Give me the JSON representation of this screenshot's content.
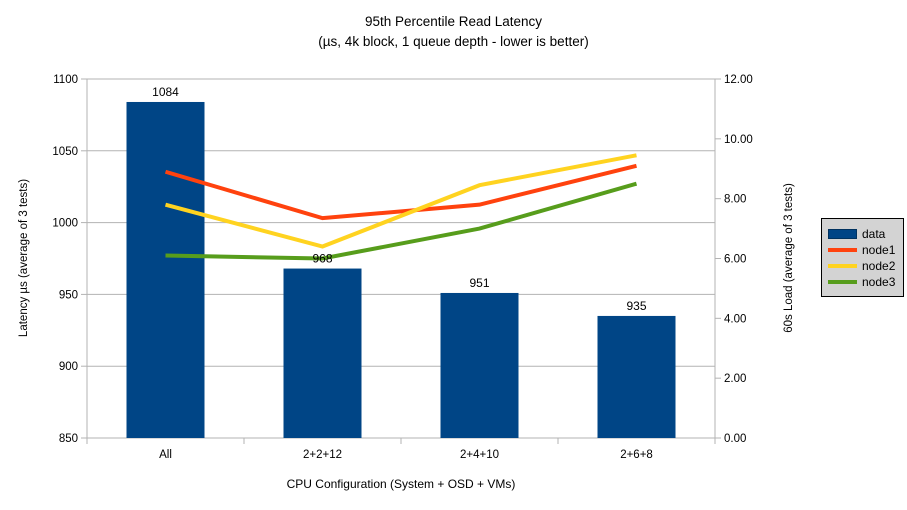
{
  "chart_data": {
    "type": "bar+line combo",
    "title": "95th Percentile Read Latency",
    "subtitle": "(µs, 4k block, 1 queue depth - lower is better)",
    "categories": [
      "All",
      "2+2+12",
      "2+4+10",
      "2+6+8"
    ],
    "xlabel": "CPU Configuration (System + OSD + VMs)",
    "grid": true,
    "left_axis": {
      "label": "Latency µs (average of 3 tests)",
      "min": 850,
      "max": 1100,
      "step": 50
    },
    "right_axis": {
      "label": "60s Load (average of 3 tests)",
      "min": 0,
      "max": 12,
      "step": 2,
      "decimals": 2
    },
    "bar_series": {
      "name": "data",
      "axis": "left",
      "color": "#004586",
      "values": [
        1084,
        968,
        951,
        935
      ],
      "data_labels": [
        "1084",
        "968",
        "951",
        "935"
      ]
    },
    "line_series": [
      {
        "name": "node1",
        "axis": "right",
        "color": "#ff420e",
        "values": [
          8.9,
          7.35,
          7.8,
          9.1
        ]
      },
      {
        "name": "node2",
        "axis": "right",
        "color": "#ffd320",
        "values": [
          7.8,
          6.4,
          8.45,
          9.45
        ]
      },
      {
        "name": "node3",
        "axis": "right",
        "color": "#579d1c",
        "values": [
          6.1,
          6.0,
          7.0,
          8.5
        ]
      }
    ],
    "legend": {
      "position": "right",
      "background": "#d3d3d3",
      "items": [
        {
          "label": "data",
          "swatch": "rect",
          "color": "#004586"
        },
        {
          "label": "node1",
          "swatch": "line",
          "color": "#ff420e"
        },
        {
          "label": "node2",
          "swatch": "line",
          "color": "#ffd320"
        },
        {
          "label": "node3",
          "swatch": "line",
          "color": "#579d1c"
        }
      ]
    },
    "grid_color": "#b3b3b3",
    "axis_color": "#b3b3b3"
  }
}
